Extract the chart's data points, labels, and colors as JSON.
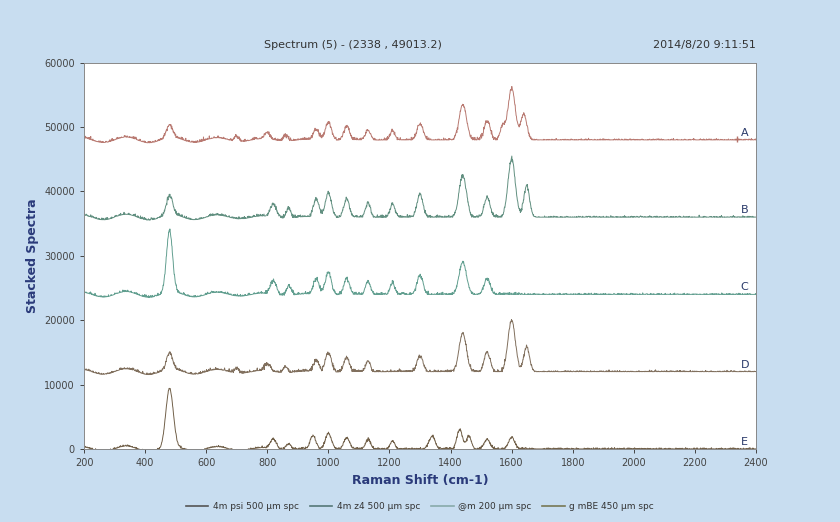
{
  "title_left": "Spectrum (5) - (2338 , 49013.2)",
  "title_right": "2014/8/20 9:11:51",
  "xlabel": "Raman Shift (cm-1)",
  "ylabel": "Stacked Spectra",
  "xlim": [
    200,
    2400
  ],
  "ylim": [
    0,
    60000
  ],
  "yticks": [
    0,
    10000,
    20000,
    30000,
    40000,
    50000,
    60000
  ],
  "xticks": [
    200,
    400,
    600,
    800,
    1000,
    1200,
    1400,
    1600,
    1800,
    2000,
    2200,
    2400
  ],
  "outer_background": "#c8ddf0",
  "plot_background": "#ffffff",
  "spectra_labels": [
    "A",
    "B",
    "C",
    "D",
    "E"
  ],
  "spectra_offsets": [
    48000,
    36000,
    24000,
    12000,
    0
  ],
  "spectra_colors": [
    "#b5736a",
    "#5a8a7a",
    "#5a9a8a",
    "#7a6855",
    "#6a5840"
  ],
  "active_range_end": 1700,
  "legend_labels": [
    "4m psi 500 µm spc",
    "4m z4 500 µm spc",
    "@m 200 µm spc",
    "g mBE 450 µm spc"
  ],
  "legend_colors": [
    "#555555",
    "#557777",
    "#88aaaa",
    "#777755"
  ]
}
